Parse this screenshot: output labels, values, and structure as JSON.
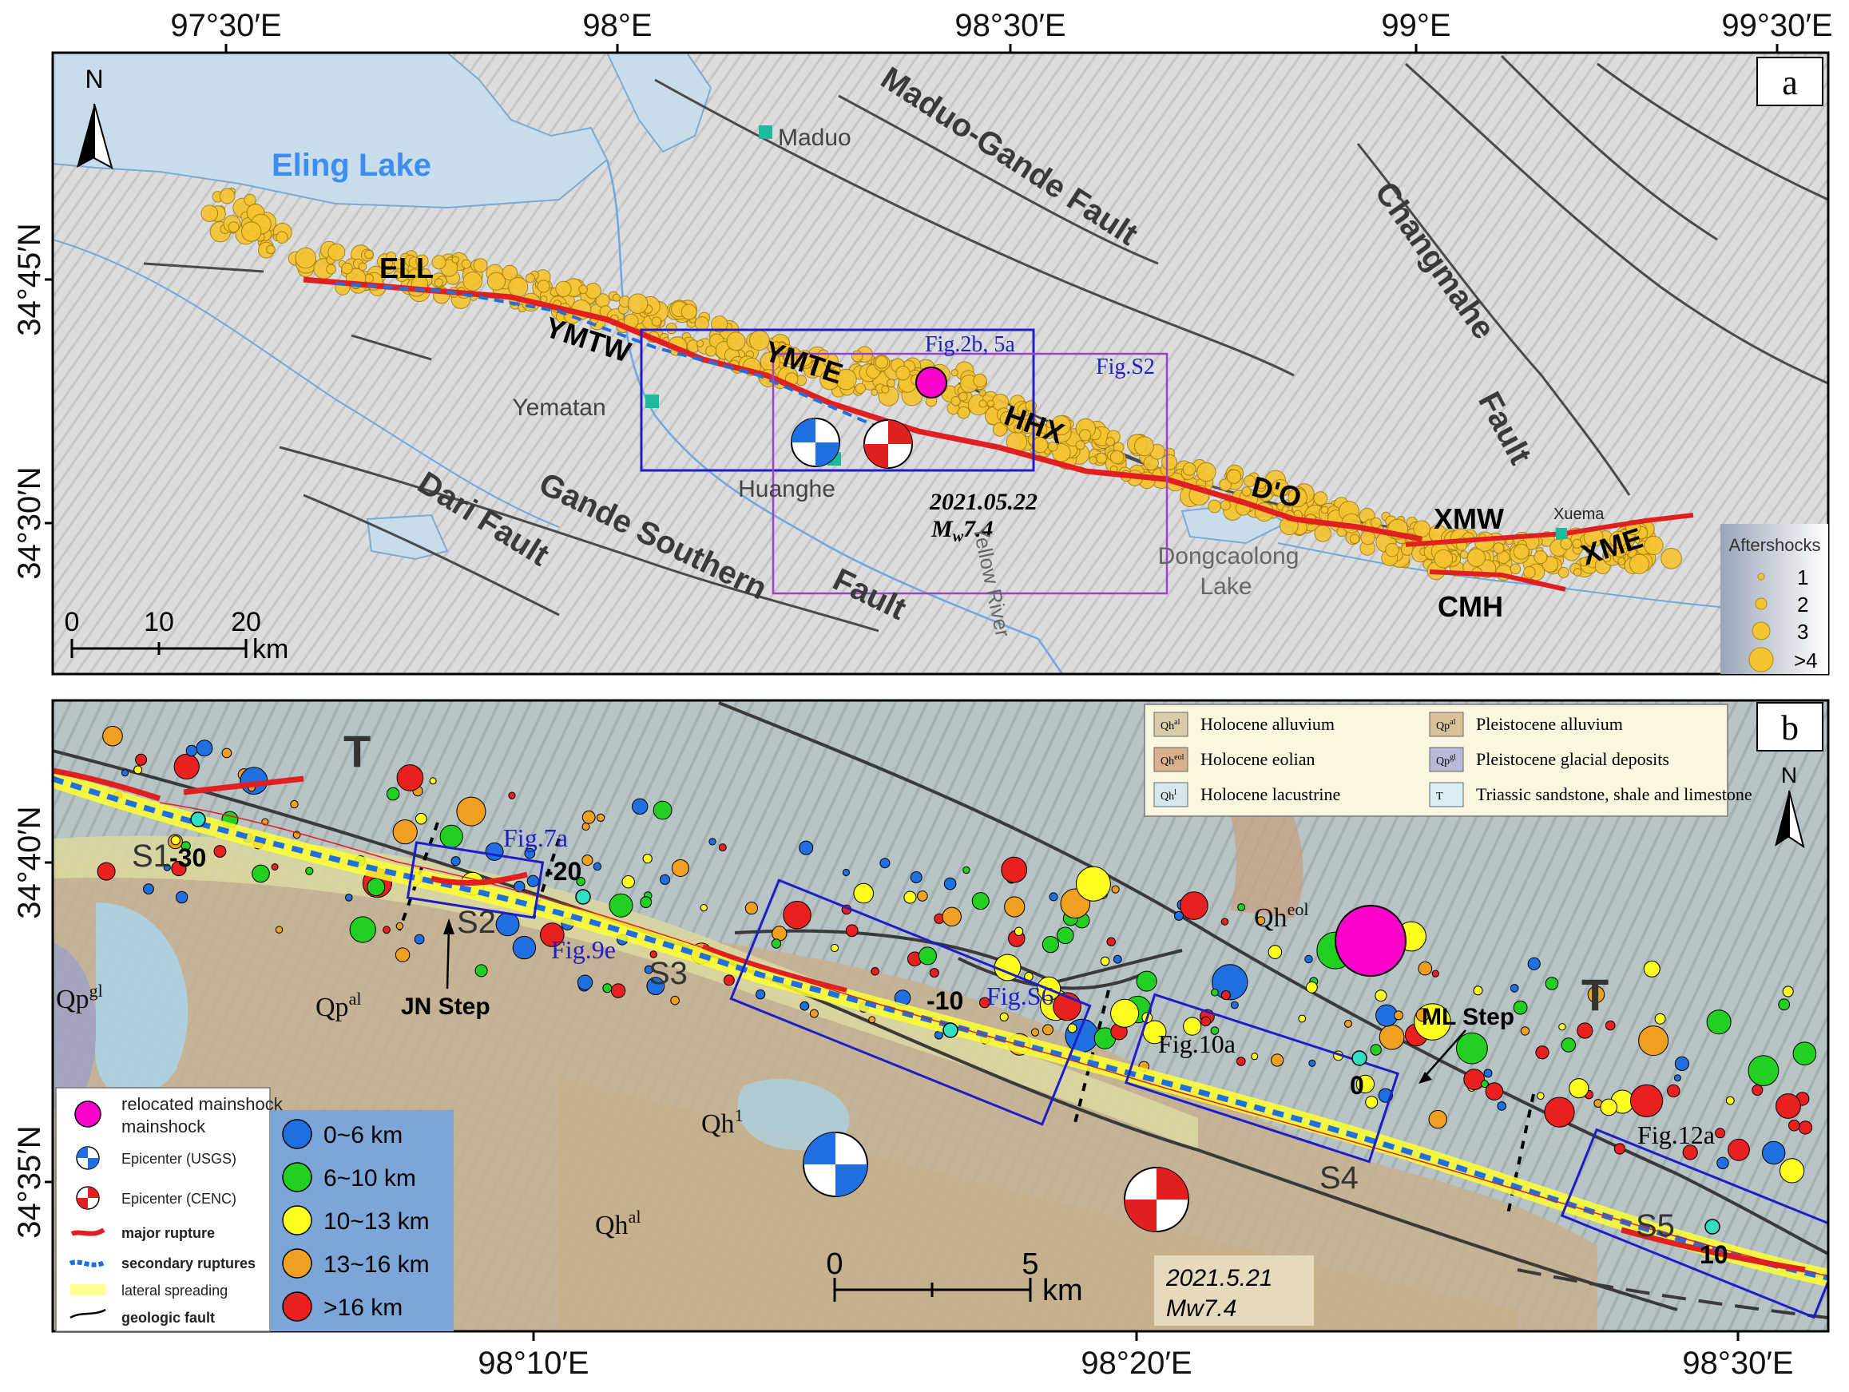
{
  "panel_a": {
    "panel_letter": "a",
    "top_lon_labels": [
      "97°30′E",
      "98°E",
      "98°30′E",
      "99°E",
      "99°30′E"
    ],
    "lat_labels": [
      "34°45′N",
      "34°30′N"
    ],
    "north_label": "N",
    "lake_labels": {
      "eling": "Eling Lake",
      "dongcaolong_1": "Dongcaolong",
      "dongcaolong_2": "Lake"
    },
    "towns": {
      "maduo": "Maduo",
      "yematan": "Yematan",
      "huanghe": "Huanghe",
      "xuema": "Xuema"
    },
    "fault_labels": {
      "maduo_gande": "Maduo-Gande Fault",
      "changmahe_1": "Changmahe",
      "changmahe_2": "Fault",
      "gande_southern": "Gande Southern",
      "gande_southern_fault": "Fault",
      "dari": "Dari Fault"
    },
    "segment_labels": {
      "ell": "ELL",
      "ymtw": "YMTW",
      "ymte": "YMTE",
      "hhx": "HHX",
      "do": "D'O",
      "xmw": "XMW",
      "xme": "XME",
      "cmh": "CMH"
    },
    "box_labels": {
      "fig2b": "Fig.2b, 5a",
      "figS2": "Fig.S2"
    },
    "event_1": "2021.05.22",
    "event_mw": "M",
    "event_mw_sub": "w",
    "event_mw_val": "7.4",
    "river_label": "Yellow River",
    "scale": {
      "labels": [
        "0",
        "10",
        "20"
      ],
      "unit": "km"
    },
    "aftershock_legend": {
      "title": "Aftershocks",
      "items": [
        "1",
        "2",
        "3",
        ">4"
      ]
    }
  },
  "panel_b": {
    "panel_letter": "b",
    "bottom_lon_labels": [
      "98°10′E",
      "98°20′E",
      "98°30′E"
    ],
    "lat_labels": [
      "34°40′N",
      "34°35′N"
    ],
    "north_label": "N",
    "geology_legend": [
      {
        "code": "Qh",
        "sup": "al",
        "label": "Holocene alluvium"
      },
      {
        "code": "Qp",
        "sup": "al",
        "label": "Pleistocene alluvium"
      },
      {
        "code": "Qh",
        "sup": "eol",
        "label": "Holocene eolian"
      },
      {
        "code": "Qp",
        "sup": "gl",
        "label": "Pleistocene glacial deposits"
      },
      {
        "code": "Qh",
        "sup": "l",
        "label": "Holocene lacustrine"
      },
      {
        "code": "T",
        "sup": "",
        "label": "Triassic sandstone, shale and limestone"
      }
    ],
    "unit_labels": {
      "qpgl": "Qp",
      "qpgl_sup": "gl",
      "qpal": "Qp",
      "qpal_sup": "al",
      "qh1": "Qh",
      "qh1_sup": "1",
      "qhal": "Qh",
      "qhal_sup": "al",
      "qheol": "Qh",
      "qheol_sup": "eol",
      "t1": "T",
      "t2": "T"
    },
    "stepovers": [
      "S1",
      "S2",
      "S3",
      "S4",
      "S5"
    ],
    "distance_marks": [
      "-30",
      "-20",
      "-10",
      "0",
      "10"
    ],
    "box_labels": {
      "fig7a": "Fig.7a",
      "fig9e": "Fig.9e",
      "figS6": "Fig.S6",
      "fig10a": "Fig.10a",
      "fig12a": "Fig.12a"
    },
    "steps": {
      "jn": "JN Step",
      "ml": "ML Step"
    },
    "event_date": "2021.5.21",
    "event_mw": "Mw7.4",
    "scale": {
      "labels": [
        "0",
        "5"
      ],
      "unit": "km"
    },
    "symbol_legend": [
      "relocated mainshock",
      "Epicenter (USGS)",
      "Epicenter (CENC)",
      "major rupture",
      "secondary ruptures",
      "lateral spreading",
      "geologic fault"
    ],
    "symbol_legend_line2": "mainshock",
    "depth_legend": [
      {
        "label": "0~6 km",
        "color": "#1f6fe0"
      },
      {
        "label": "6~10 km",
        "color": "#22d022"
      },
      {
        "label": "10~13 km",
        "color": "#ffff20"
      },
      {
        "label": "13~16 km",
        "color": "#f0a020"
      },
      {
        "label": ">16 km",
        "color": "#e82020"
      }
    ]
  },
  "colors": {
    "rupture_major": "#e02020",
    "rupture_secondary": "#1f6fe0",
    "aftershock": "#f5c431",
    "study_box": "#1e1ec8",
    "figS2_box": "#a040d0",
    "mainshock": "#ff00cc",
    "lake": "#c9dcea"
  }
}
